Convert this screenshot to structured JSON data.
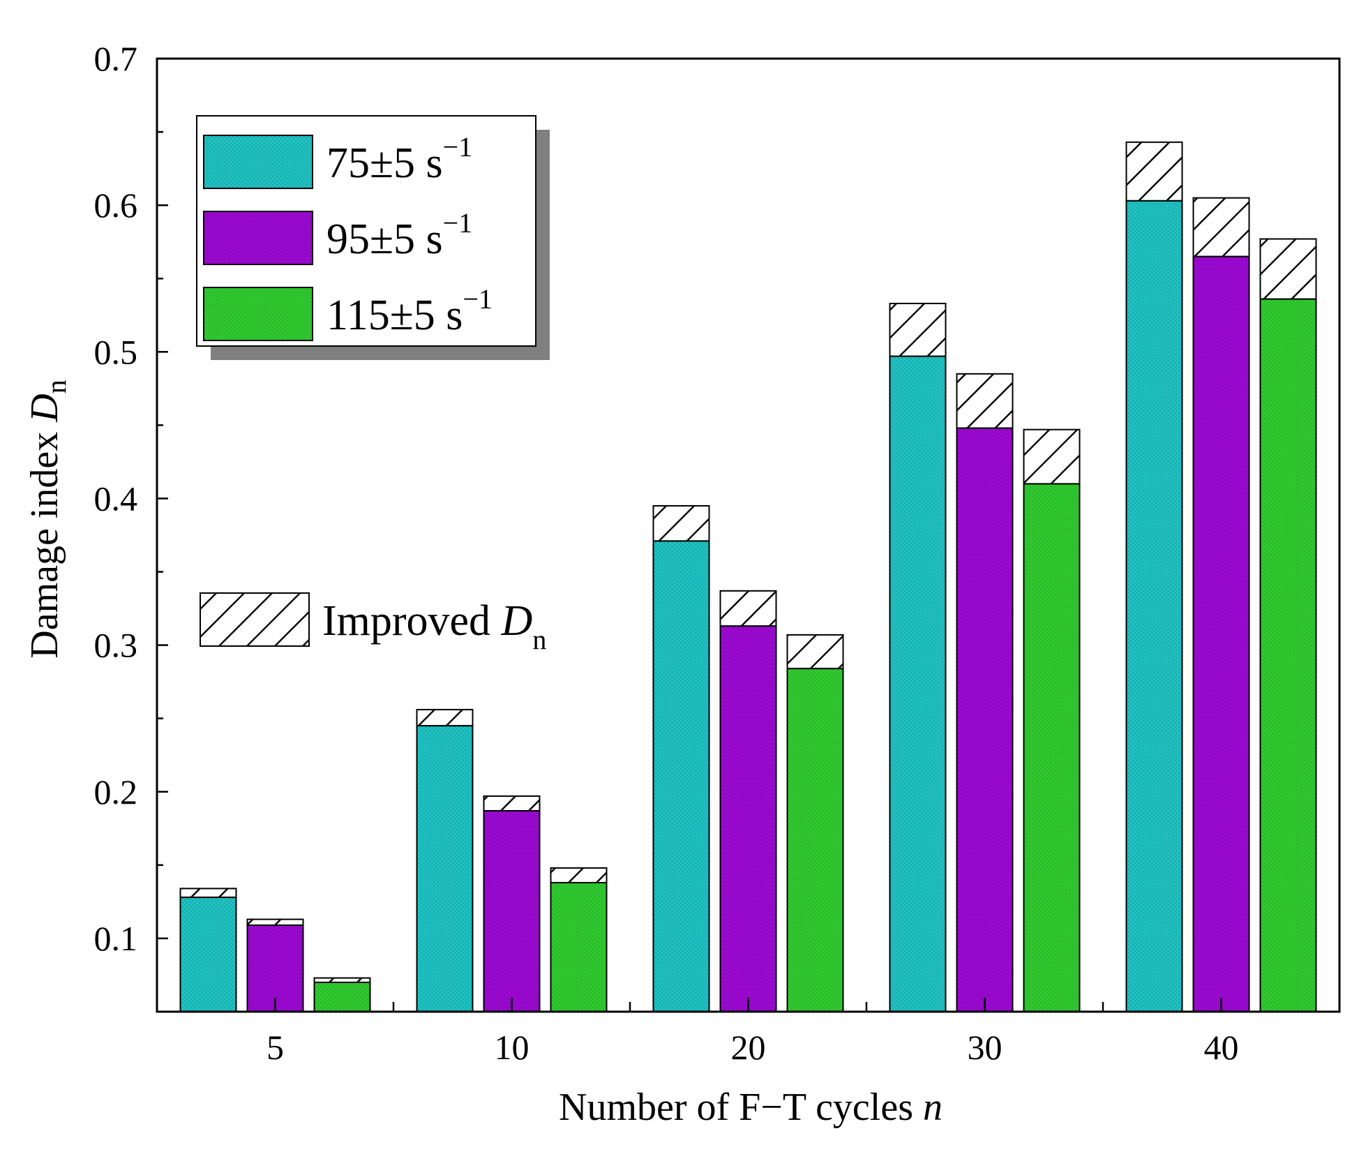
{
  "chart_data": {
    "type": "bar",
    "categories": [
      "5",
      "10",
      "20",
      "30",
      "40"
    ],
    "x_tick_labels": [
      "5",
      "10",
      "20",
      "30",
      "40"
    ],
    "y_tick_labels": [
      "0.1",
      "0.2",
      "0.3",
      "0.4",
      "0.5",
      "0.6",
      "0.7"
    ],
    "ylim": [
      0.05,
      0.7
    ],
    "xlabel": {
      "text": "Number of F−T cycles ",
      "italic_symbol": "n"
    },
    "ylabel": {
      "text": "Damage index ",
      "italic_symbol": "D",
      "subscript": "n"
    },
    "series": [
      {
        "name": "75±5 s",
        "name_superscript": "−1",
        "color": "#1fbcbc",
        "values": [
          0.128,
          0.245,
          0.371,
          0.497,
          0.603
        ],
        "improved_values": [
          0.134,
          0.256,
          0.395,
          0.533,
          0.643
        ]
      },
      {
        "name": "95±5 s",
        "name_superscript": "−1",
        "color": "#9a0acf",
        "values": [
          0.109,
          0.187,
          0.313,
          0.448,
          0.565
        ],
        "improved_values": [
          0.113,
          0.197,
          0.337,
          0.485,
          0.605
        ]
      },
      {
        "name": "115±5 s",
        "name_superscript": "−1",
        "color": "#2ec82e",
        "values": [
          0.07,
          0.138,
          0.284,
          0.41,
          0.536
        ],
        "improved_values": [
          0.073,
          0.148,
          0.307,
          0.447,
          0.577
        ]
      }
    ],
    "hatch_legend": {
      "text": "Improved ",
      "italic_symbol": "D",
      "subscript": "n"
    },
    "grid": false,
    "legend_placement": "top-left"
  }
}
